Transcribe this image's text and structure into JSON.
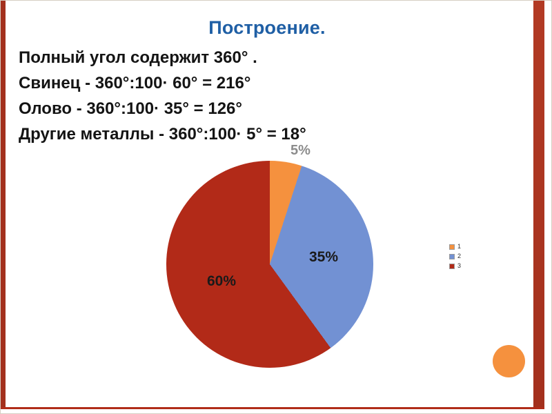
{
  "slide": {
    "title": "Построение.",
    "lines": [
      "Полный угол содержит 360° .",
      "Свинец - 360°:100· 60° = 216°",
      "Олово - 360°:100· 35° = 126°",
      "Другие металлы - 360°:100· 5° = 18°"
    ]
  },
  "chart_data": {
    "type": "pie",
    "categories": [
      "1",
      "2",
      "3"
    ],
    "values": [
      5,
      35,
      60
    ],
    "colors": [
      "#F5913E",
      "#7291D3",
      "#B22A18"
    ],
    "slice_labels": [
      "5%",
      "35%",
      "60%"
    ],
    "start_angle_deg": 0,
    "direction": "clockwise",
    "legend_position": "right",
    "legend_items": [
      {
        "label": "1",
        "color": "#F5913E"
      },
      {
        "label": "2",
        "color": "#7291D3"
      },
      {
        "label": "3",
        "color": "#B22A18"
      }
    ]
  },
  "decor": {
    "accent_bar_color": "#A3301D",
    "bottom_line_color": "#B02C18",
    "circle_color": "#F5913E",
    "title_color": "#1F5FA5",
    "label_5_color": "#8C8C8C"
  }
}
